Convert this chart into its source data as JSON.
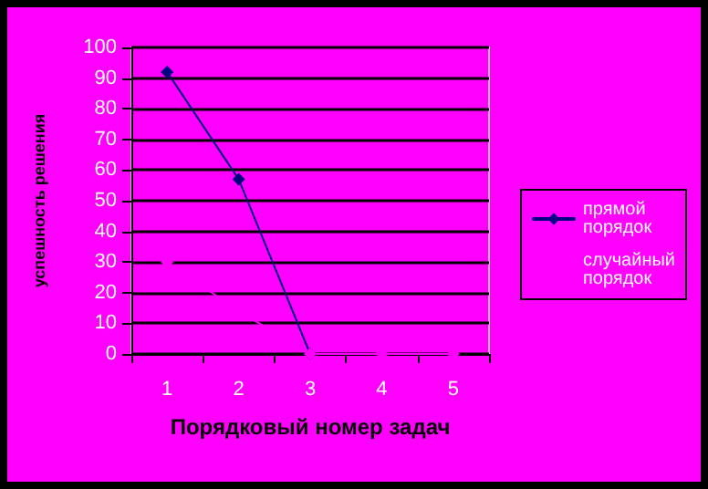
{
  "chart_data": {
    "type": "line",
    "xlabel": "Порядковый номер задач",
    "ylabel": "успешность решения",
    "categories": [
      "1",
      "2",
      "3",
      "4",
      "5"
    ],
    "series": [
      {
        "name": "прямой порядок",
        "color": "#000080",
        "values": [
          92,
          57,
          0,
          null,
          null
        ]
      },
      {
        "name": "случайный порядок",
        "color": "#ff00ff",
        "values": [
          30,
          14,
          0,
          0,
          0
        ]
      }
    ],
    "ylim": [
      0,
      100
    ],
    "yticks": [
      0,
      10,
      20,
      30,
      40,
      50,
      60,
      70,
      80,
      90,
      100
    ],
    "grid": "y",
    "legend": "right",
    "marker": "diamond",
    "line_style": "solid"
  }
}
